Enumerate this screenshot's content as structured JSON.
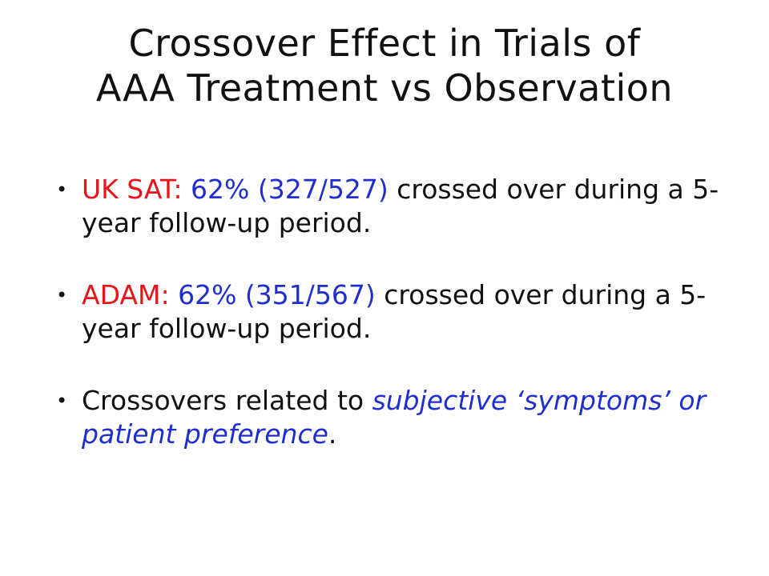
{
  "slide": {
    "title_line1": "Crossover Effect in Trials of",
    "title_line2": "AAA Treatment vs Observation",
    "bullet_glyph": "•",
    "bullets": [
      {
        "label": "UK SAT:",
        "stat": "62% (327/527)",
        "text": "crossed over during a 5-year follow-up period."
      },
      {
        "label": "ADAM:",
        "stat": "62% (351/567)",
        "text": "crossed over during a 5-year follow-up period."
      },
      {
        "text": "Crossovers related to",
        "emphasis": "subjective ‘symptoms’ or patient preference",
        "end": "."
      }
    ],
    "colors": {
      "label": "#e8141a",
      "stat": "#1f2ecc",
      "emphasis": "#1f2ecc",
      "text": "#111111"
    }
  }
}
